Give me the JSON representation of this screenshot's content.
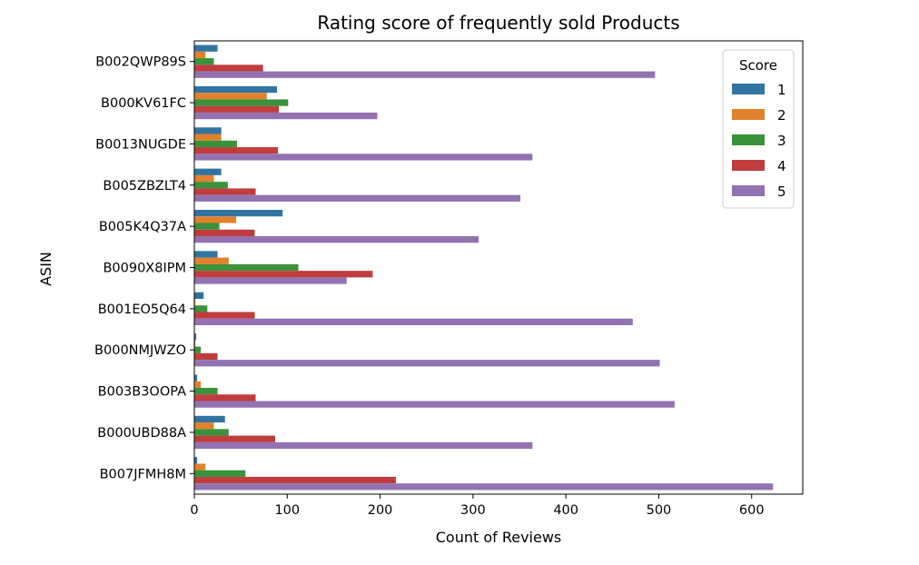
{
  "chart_data": {
    "type": "bar",
    "orientation": "horizontal",
    "title": "Rating score of frequently sold Products",
    "xlabel": "Count of Reviews",
    "ylabel": "ASIN",
    "xlim": [
      0,
      655
    ],
    "xticks": [
      0,
      100,
      200,
      300,
      400,
      500,
      600
    ],
    "grid": false,
    "legend": {
      "title": "Score",
      "placement": "top-right"
    },
    "categories": [
      "B002QWP89S",
      "B000KV61FC",
      "B0013NUGDE",
      "B005ZBZLT4",
      "B005K4Q37A",
      "B0090X8IPM",
      "B001EO5Q64",
      "B000NMJWZO",
      "B003B3OOPA",
      "B000UBD88A",
      "B007JFMH8M"
    ],
    "series": [
      {
        "name": "1",
        "color": "#3274a1",
        "values": [
          25,
          89,
          29,
          29,
          95,
          25,
          10,
          2,
          3,
          33,
          3
        ]
      },
      {
        "name": "2",
        "color": "#e1812c",
        "values": [
          12,
          78,
          29,
          21,
          45,
          37,
          1,
          1,
          7,
          21,
          12
        ]
      },
      {
        "name": "3",
        "color": "#3a923a",
        "values": [
          21,
          101,
          46,
          36,
          27,
          112,
          14,
          7,
          25,
          37,
          55
        ]
      },
      {
        "name": "4",
        "color": "#c03d3e",
        "values": [
          74,
          91,
          90,
          66,
          65,
          192,
          65,
          25,
          66,
          87,
          217
        ]
      },
      {
        "name": "5",
        "color": "#9372b2",
        "values": [
          496,
          197,
          364,
          351,
          306,
          164,
          472,
          501,
          517,
          364,
          623
        ]
      }
    ]
  }
}
